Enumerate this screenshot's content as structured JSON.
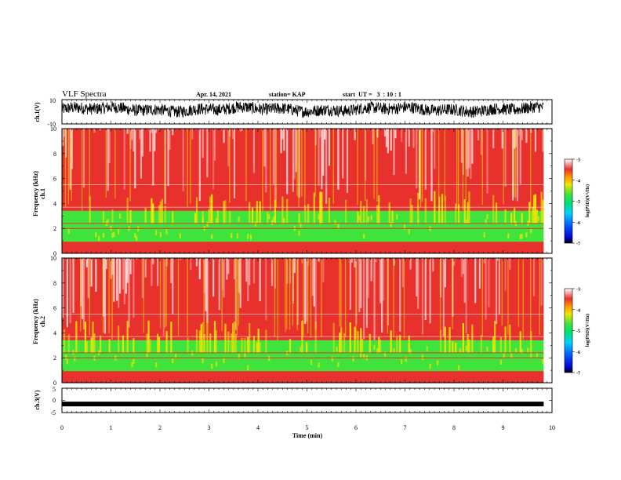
{
  "header": {
    "title": "VLF Spectra",
    "date": "Apr. 14, 2021",
    "station": "station= KAP",
    "start": "start  UT =   3  : 10 : 1"
  },
  "chart_data": [
    {
      "type": "line",
      "panel": "ch1-waveform",
      "ylabel": "ch.1(V)",
      "ylim": [
        -10,
        10
      ],
      "yticks": [
        "10",
        "-10"
      ],
      "xlim": [
        0,
        10
      ],
      "data_end_min": 9.83,
      "trace_color": "#000000",
      "description_values": {
        "mean": 2,
        "amplitude": 5
      }
    },
    {
      "type": "heatmap",
      "panel": "ch1-spectrogram",
      "ylabel": "ch.1\nFrequency  (kHz)",
      "ylim": [
        0,
        10
      ],
      "yticks": [
        "0",
        "2",
        "4",
        "6",
        "8",
        "10"
      ],
      "xlim": [
        0,
        10
      ],
      "data_end_min": 9.83,
      "bands_kHz": [
        {
          "from": 0,
          "to": 0.9,
          "level": "yellow-red"
        },
        {
          "from": 0.9,
          "to": 3.4,
          "level": "green"
        },
        {
          "from": 3.4,
          "to": 10,
          "level": "red"
        }
      ],
      "colorbar": {
        "label": "log(PSD)(V²/Hz)",
        "range": [
          -7,
          -3
        ],
        "ticks": [
          "-3",
          "-4",
          "-5",
          "-6",
          "-7"
        ]
      }
    },
    {
      "type": "heatmap",
      "panel": "ch2-spectrogram",
      "ylabel": "ch.2\nFrequency  (kHz)",
      "ylim": [
        0,
        10
      ],
      "yticks": [
        "0",
        "2",
        "4",
        "6",
        "8",
        "10"
      ],
      "xlim": [
        0,
        10
      ],
      "data_end_min": 9.83,
      "bands_kHz": [
        {
          "from": 0,
          "to": 0.9,
          "level": "yellow-red"
        },
        {
          "from": 0.9,
          "to": 3.4,
          "level": "green"
        },
        {
          "from": 3.4,
          "to": 10,
          "level": "red"
        }
      ],
      "colorbar": {
        "label": "log(PSD)(V²/Hz)",
        "range": [
          -7,
          -3
        ],
        "ticks": [
          "-3",
          "-4",
          "-5",
          "-6",
          "-7"
        ]
      }
    },
    {
      "type": "line",
      "panel": "ch3-waveform",
      "ylabel": "ch.3(V)",
      "ylim": [
        -5,
        5
      ],
      "yticks": [
        "5",
        "0",
        "-5"
      ],
      "xlim": [
        0,
        10
      ],
      "data_end_min": 9.83,
      "trace_value": -1.5,
      "trace_color": "#000000"
    }
  ],
  "xaxis": {
    "label": "Time  (min)",
    "ticks": [
      "0",
      "1",
      "2",
      "3",
      "4",
      "5",
      "6",
      "7",
      "8",
      "9",
      "10"
    ]
  },
  "colors": {
    "red": "#e8302c",
    "yellow": "#f2e600",
    "green": "#3fe33c",
    "white": "#ffffff"
  }
}
